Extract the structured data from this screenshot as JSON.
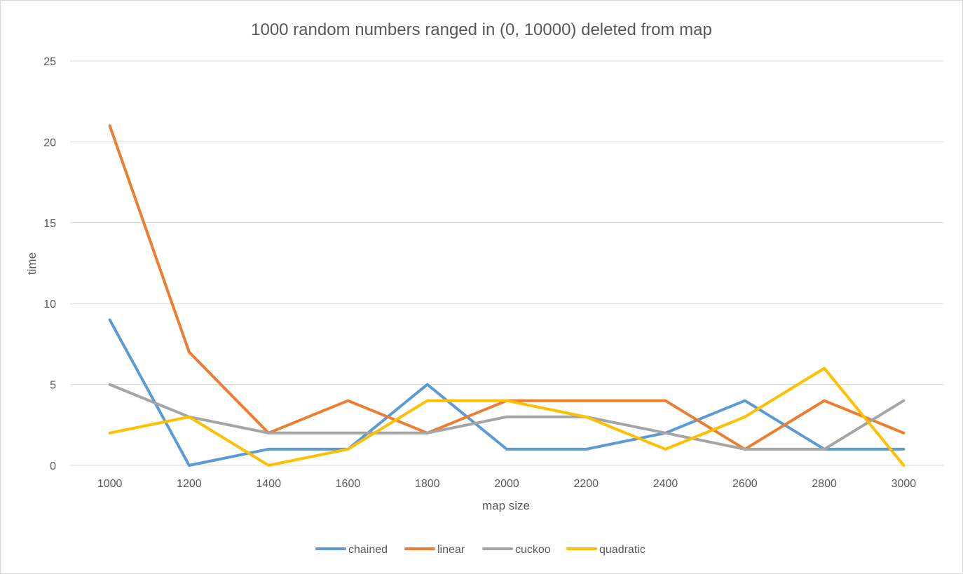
{
  "chart_data": {
    "type": "line",
    "title": "1000 random numbers ranged in (0, 10000) deleted from map",
    "xlabel": "map size",
    "ylabel": "time",
    "x": [
      "1000",
      "1200",
      "1400",
      "1600",
      "1800",
      "2000",
      "2200",
      "2400",
      "2600",
      "2800",
      "3000"
    ],
    "ylim": [
      0,
      25
    ],
    "yticks": [
      0,
      5,
      10,
      15,
      20,
      25
    ],
    "grid": true,
    "legend_position": "bottom",
    "series": [
      {
        "name": "chained",
        "color": "#5B9BD5",
        "values": [
          9,
          0,
          1,
          1,
          5,
          1,
          1,
          2,
          4,
          1,
          1
        ]
      },
      {
        "name": "linear",
        "color": "#ED7D31",
        "values": [
          21,
          7,
          2,
          4,
          2,
          4,
          4,
          4,
          1,
          4,
          2
        ]
      },
      {
        "name": "cuckoo",
        "color": "#A5A5A5",
        "values": [
          5,
          3,
          2,
          2,
          2,
          3,
          3,
          2,
          1,
          1,
          4
        ]
      },
      {
        "name": "quadratic",
        "color": "#FFC000",
        "values": [
          2,
          3,
          0,
          1,
          4,
          4,
          3,
          1,
          3,
          6,
          0
        ]
      }
    ]
  }
}
